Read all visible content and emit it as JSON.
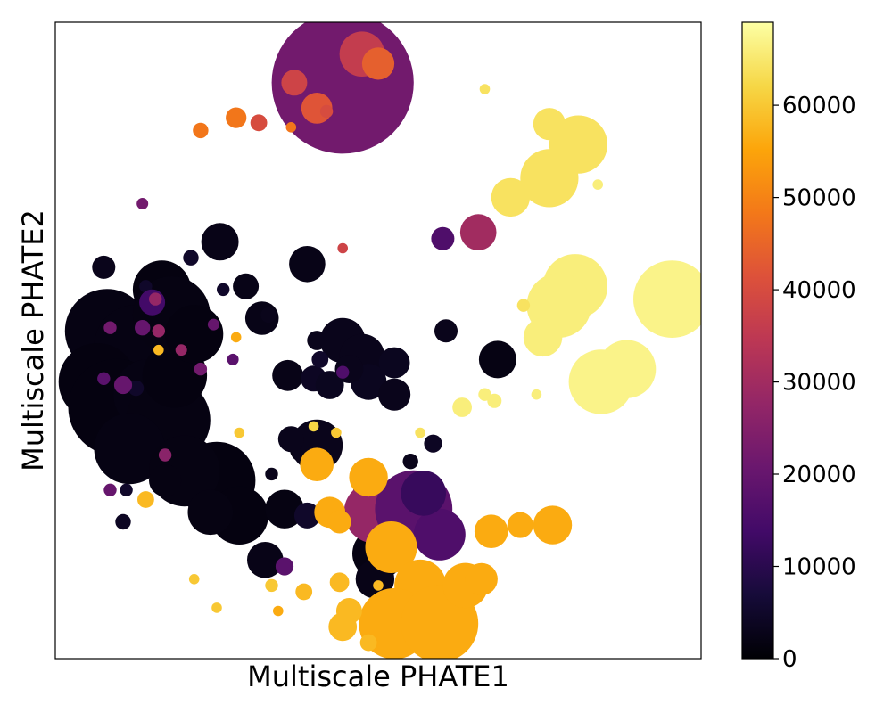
{
  "chart_data": {
    "type": "scatter",
    "title": "",
    "xlabel": "Multiscale PHATE1",
    "ylabel": "Multiscale PHATE2",
    "xlim": [
      0,
      100
    ],
    "ylim": [
      0,
      100
    ],
    "x_ticks_visible": false,
    "y_ticks_visible": false,
    "grid": false,
    "colormap": "inferno",
    "colorbar": {
      "min": 0,
      "max": 69000,
      "ticks": [
        0,
        10000,
        20000,
        30000,
        40000,
        50000,
        60000
      ],
      "tick_labels": [
        "0",
        "10000",
        "20000",
        "30000",
        "40000",
        "50000",
        "60000"
      ]
    },
    "point_fields": [
      "x",
      "y",
      "radius",
      "value"
    ],
    "points": [
      [
        44.5,
        90.5,
        11.0,
        22000
      ],
      [
        47.5,
        95.0,
        3.5,
        36000
      ],
      [
        50.0,
        93.5,
        2.5,
        44000
      ],
      [
        37.0,
        90.5,
        2.0,
        38000
      ],
      [
        40.5,
        86.5,
        2.4,
        42000
      ],
      [
        42.0,
        86.0,
        1.0,
        40000
      ],
      [
        28.0,
        85.0,
        1.6,
        48000
      ],
      [
        31.5,
        84.2,
        1.3,
        40000
      ],
      [
        22.5,
        83.0,
        1.2,
        48000
      ],
      [
        36.5,
        83.5,
        0.8,
        48000
      ],
      [
        66.5,
        89.5,
        0.8,
        64000
      ],
      [
        76.5,
        84.0,
        2.5,
        64000
      ],
      [
        81.0,
        80.8,
        4.5,
        64000
      ],
      [
        76.5,
        75.5,
        4.5,
        64000
      ],
      [
        70.5,
        72.5,
        3.0,
        64000
      ],
      [
        84.0,
        74.5,
        0.8,
        66000
      ],
      [
        65.5,
        67.0,
        2.8,
        30000
      ],
      [
        60.0,
        66.0,
        1.8,
        16000
      ],
      [
        13.5,
        71.5,
        0.9,
        22000
      ],
      [
        80.5,
        58.5,
        5.0,
        66000
      ],
      [
        78.0,
        55.5,
        5.0,
        66000
      ],
      [
        75.5,
        50.5,
        3.0,
        66000
      ],
      [
        95.5,
        56.5,
        6.0,
        67000
      ],
      [
        88.5,
        45.5,
        4.5,
        67000
      ],
      [
        84.5,
        43.5,
        5.0,
        67000
      ],
      [
        72.5,
        55.5,
        1.0,
        64000
      ],
      [
        74.5,
        41.5,
        0.8,
        66000
      ],
      [
        68.5,
        47.0,
        2.9,
        2000
      ],
      [
        60.5,
        51.5,
        1.8,
        3000
      ],
      [
        63.0,
        39.5,
        1.5,
        66000
      ],
      [
        66.5,
        41.5,
        1.0,
        66000
      ],
      [
        68.0,
        40.5,
        1.1,
        66000
      ],
      [
        8.0,
        51.5,
        6.5,
        2000
      ],
      [
        12.5,
        49.0,
        6.5,
        2000
      ],
      [
        6.5,
        43.5,
        6.0,
        1500
      ],
      [
        9.5,
        39.5,
        7.5,
        1500
      ],
      [
        14.5,
        41.5,
        5.5,
        2000
      ],
      [
        17.5,
        37.5,
        6.5,
        1800
      ],
      [
        11.5,
        33.0,
        5.5,
        2000
      ],
      [
        18.5,
        44.5,
        5.0,
        1500
      ],
      [
        16.5,
        58.0,
        4.5,
        1500
      ],
      [
        18.0,
        54.0,
        6.0,
        1800
      ],
      [
        21.5,
        51.0,
        4.5,
        1500
      ],
      [
        25.5,
        65.5,
        2.9,
        2500
      ],
      [
        7.5,
        61.5,
        1.8,
        3000
      ],
      [
        29.5,
        58.5,
        2.0,
        2500
      ],
      [
        32.0,
        53.5,
        2.6,
        2500
      ],
      [
        25.0,
        28.0,
        6.0,
        1500
      ],
      [
        20.0,
        29.5,
        5.5,
        1800
      ],
      [
        28.5,
        22.5,
        4.5,
        1500
      ],
      [
        24.0,
        23.0,
        3.5,
        1800
      ],
      [
        35.5,
        23.5,
        3.0,
        1800
      ],
      [
        32.5,
        15.5,
        2.8,
        2500
      ],
      [
        10.5,
        21.5,
        1.2,
        4000
      ],
      [
        17.0,
        28.0,
        2.5,
        1800
      ],
      [
        39.0,
        62.0,
        2.8,
        2500
      ],
      [
        36.0,
        44.5,
        2.4,
        2500
      ],
      [
        40.0,
        44.0,
        2.0,
        4000
      ],
      [
        38.5,
        33.0,
        2.2,
        2000
      ],
      [
        40.5,
        33.5,
        4.0,
        3000
      ],
      [
        36.5,
        34.5,
        2.0,
        3000
      ],
      [
        33.5,
        29.0,
        1.0,
        3000
      ],
      [
        44.5,
        50.0,
        3.5,
        3000
      ],
      [
        47.5,
        47.5,
        3.5,
        3000
      ],
      [
        48.5,
        43.5,
        2.8,
        3500
      ],
      [
        52.5,
        46.5,
        2.4,
        3500
      ],
      [
        45.5,
        45.5,
        2.2,
        3000
      ],
      [
        42.5,
        43.0,
        2.2,
        3500
      ],
      [
        40.5,
        50.0,
        1.5,
        3000
      ],
      [
        33.0,
        54.0,
        1.2,
        3000
      ],
      [
        52.5,
        41.5,
        2.5,
        3000
      ],
      [
        58.5,
        33.8,
        1.4,
        4000
      ],
      [
        55.0,
        31.0,
        1.2,
        3000
      ],
      [
        48.5,
        26.0,
        2.4,
        3000
      ],
      [
        50.0,
        16.5,
        4.0,
        2000
      ],
      [
        49.5,
        12.5,
        3.0,
        2500
      ],
      [
        39.0,
        22.5,
        2.0,
        5000
      ],
      [
        14.0,
        58.5,
        1.0,
        5000
      ],
      [
        12.5,
        42.5,
        1.2,
        5000
      ],
      [
        11.0,
        26.5,
        1.0,
        5000
      ],
      [
        21.0,
        63.0,
        1.2,
        5000
      ],
      [
        41.0,
        47.0,
        1.3,
        5000
      ],
      [
        26.0,
        58.0,
        1.0,
        5000
      ],
      [
        13.5,
        52.0,
        1.2,
        20000
      ],
      [
        8.5,
        52.0,
        1.0,
        22000
      ],
      [
        10.5,
        43.0,
        1.4,
        20000
      ],
      [
        7.5,
        44.0,
        1.0,
        18000
      ],
      [
        22.5,
        45.5,
        1.0,
        22000
      ],
      [
        8.5,
        26.5,
        1.0,
        20000
      ],
      [
        17.0,
        32.0,
        1.0,
        26000
      ],
      [
        16.0,
        51.5,
        1.0,
        28000
      ],
      [
        15.0,
        56.0,
        2.0,
        14000
      ],
      [
        15.5,
        56.5,
        1.0,
        28000
      ],
      [
        35.5,
        14.5,
        1.4,
        18000
      ],
      [
        24.5,
        52.5,
        0.9,
        20000
      ],
      [
        27.5,
        47.0,
        0.9,
        18000
      ],
      [
        44.5,
        45.0,
        1.0,
        16000
      ],
      [
        19.5,
        48.5,
        0.9,
        28000
      ],
      [
        44.5,
        64.5,
        0.8,
        38000
      ],
      [
        49.5,
        23.0,
        4.8,
        28000
      ],
      [
        55.5,
        23.5,
        6.0,
        18000
      ],
      [
        59.5,
        19.5,
        4.0,
        16000
      ],
      [
        57.0,
        26.0,
        3.5,
        12000
      ],
      [
        57.0,
        12.5,
        1.3,
        24000
      ],
      [
        48.5,
        28.5,
        3.0,
        56000
      ],
      [
        40.5,
        30.5,
        2.6,
        56000
      ],
      [
        42.5,
        23.0,
        2.4,
        56000
      ],
      [
        44.0,
        21.5,
        1.8,
        56000
      ],
      [
        52.0,
        17.5,
        4.0,
        56000
      ],
      [
        56.5,
        11.5,
        4.0,
        56000
      ],
      [
        52.5,
        5.5,
        5.5,
        56000
      ],
      [
        59.5,
        5.5,
        6.0,
        56000
      ],
      [
        63.5,
        11.5,
        3.5,
        56000
      ],
      [
        66.0,
        12.5,
        2.5,
        56000
      ],
      [
        67.5,
        20.0,
        2.6,
        56000
      ],
      [
        72.0,
        21.0,
        2.0,
        56000
      ],
      [
        77.0,
        21.0,
        3.0,
        56000
      ],
      [
        44.0,
        12.0,
        1.5,
        58000
      ],
      [
        45.5,
        7.5,
        2.0,
        58000
      ],
      [
        44.5,
        5.0,
        2.2,
        58000
      ],
      [
        38.5,
        10.5,
        1.3,
        58000
      ],
      [
        48.5,
        2.5,
        1.3,
        58000
      ],
      [
        33.5,
        11.5,
        1.0,
        60000
      ],
      [
        14.0,
        25.0,
        1.3,
        58000
      ],
      [
        28.5,
        35.5,
        0.8,
        60000
      ],
      [
        43.5,
        35.5,
        0.8,
        60000
      ],
      [
        40.0,
        36.5,
        0.8,
        62000
      ],
      [
        16.0,
        48.5,
        0.8,
        58000
      ],
      [
        28.0,
        50.5,
        0.8,
        56000
      ],
      [
        21.5,
        12.5,
        0.8,
        60000
      ],
      [
        25.0,
        8.0,
        0.8,
        60000
      ],
      [
        34.5,
        7.5,
        0.8,
        56000
      ],
      [
        50.0,
        11.5,
        0.8,
        58000
      ],
      [
        56.5,
        35.5,
        0.8,
        64000
      ]
    ]
  }
}
